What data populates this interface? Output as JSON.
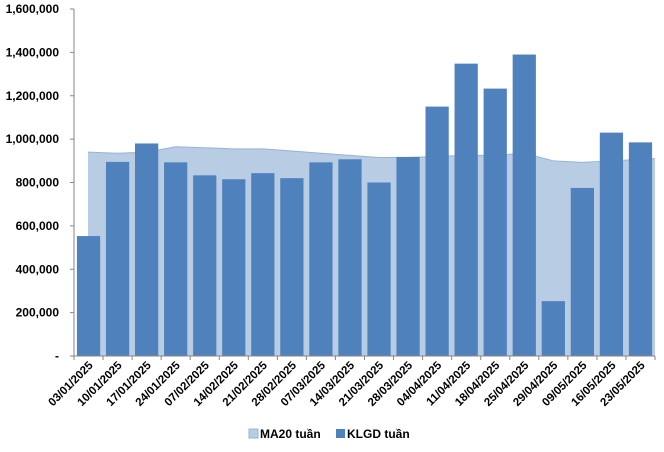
{
  "chart_data": {
    "type": "bar",
    "title": "",
    "xlabel": "",
    "ylabel": "",
    "ylim": [
      0,
      1600000
    ],
    "y_ticks": [
      0,
      200000,
      400000,
      600000,
      800000,
      1000000,
      1200000,
      1400000,
      1600000
    ],
    "y_tick_labels": [
      "-",
      "200,000",
      "400,000",
      "600,000",
      "800,000",
      "1,000,000",
      "1,200,000",
      "1,400,000",
      "1,600,000"
    ],
    "grid": false,
    "legend_position": "bottom-center",
    "categories": [
      "03/01/2025",
      "10/01/2025",
      "17/01/2025",
      "24/01/2025",
      "07/02/2025",
      "14/02/2025",
      "21/02/2025",
      "28/02/2025",
      "07/03/2025",
      "14/03/2025",
      "21/03/2025",
      "28/03/2025",
      "04/04/2025",
      "11/04/2025",
      "18/04/2025",
      "25/04/2025",
      "29/04/2025",
      "09/05/2025",
      "16/05/2025",
      "23/05/2025"
    ],
    "series": [
      {
        "name": "MA20 tuần",
        "type": "area",
        "color": "#B8CCE4",
        "line_color": "#95B3D7",
        "values": [
          940000,
          935000,
          940000,
          965000,
          960000,
          955000,
          955000,
          945000,
          935000,
          925000,
          915000,
          915000,
          920000,
          925000,
          925000,
          935000,
          900000,
          893000,
          900000,
          910000
        ]
      },
      {
        "name": "KLGD tuần",
        "type": "bar",
        "color": "#4F81BD",
        "values": [
          553000,
          895000,
          980000,
          893000,
          833000,
          815000,
          843000,
          820000,
          893000,
          907000,
          800000,
          918000,
          1150000,
          1348000,
          1233000,
          1390000,
          253000,
          775000,
          1030000,
          985000
        ]
      }
    ]
  }
}
